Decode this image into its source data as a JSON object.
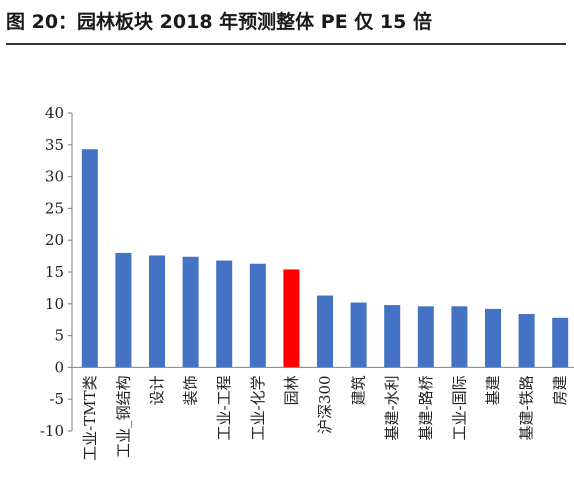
{
  "figure": {
    "title": "图 20：园林板块 2018 年预测整体 PE 仅 15 倍"
  },
  "colors": {
    "bar": "#4472c4",
    "highlight": "#ff0000",
    "axis": "#808080",
    "text": "#222222"
  },
  "chart_data": {
    "type": "bar",
    "title": "",
    "xlabel": "",
    "ylabel": "",
    "ylim": [
      -10,
      40
    ],
    "yticks": [
      40,
      35,
      30,
      25,
      20,
      15,
      10,
      5,
      0,
      -5,
      -10
    ],
    "grid": false,
    "legend": "none",
    "categories": [
      "工业-TMT类",
      "工业_钢结构",
      "设计",
      "装饰",
      "工业-工程",
      "工业-化学",
      "园林",
      "沪深300",
      "建筑",
      "基建-水利",
      "基建-路桥",
      "工业-国际",
      "基建",
      "基建-铁路",
      "房建"
    ],
    "values": [
      34.3,
      18.0,
      17.6,
      17.4,
      16.8,
      16.3,
      15.4,
      11.3,
      10.2,
      9.8,
      9.6,
      9.6,
      9.2,
      8.4,
      7.8
    ],
    "highlight_category": "园林"
  }
}
